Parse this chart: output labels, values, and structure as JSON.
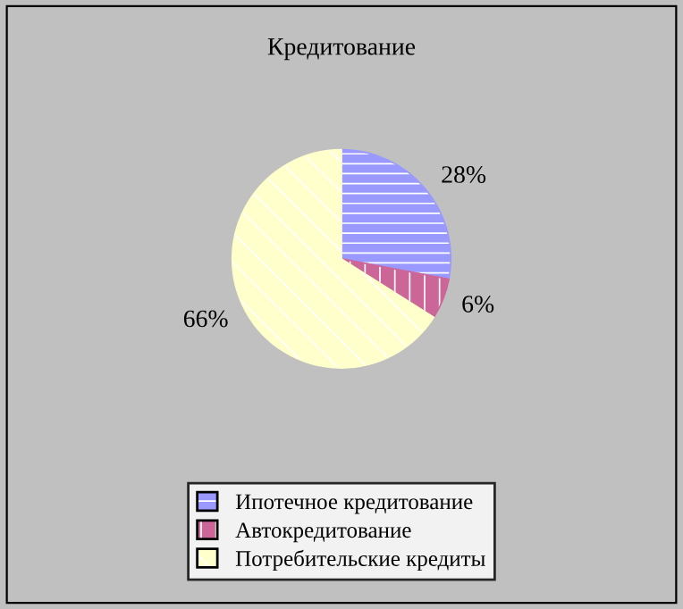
{
  "chart_data": {
    "type": "pie",
    "title": "Кредитование",
    "categories": [
      "Ипотечное кредитование",
      "Автокредитование",
      "Потребительские кредиты"
    ],
    "values": [
      28,
      6,
      66
    ],
    "colors": [
      "#9999ff",
      "#cc6699",
      "#ffffcc"
    ],
    "value_labels": [
      "28%",
      "6%",
      "66%"
    ],
    "legend": "bottom"
  }
}
